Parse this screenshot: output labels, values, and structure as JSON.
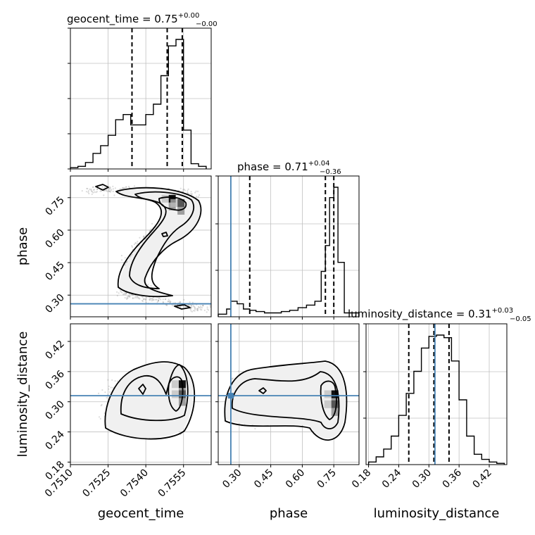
{
  "chart_data": {
    "type": "corner",
    "parameters": [
      "geocent_time",
      "phase",
      "luminosity_distance"
    ],
    "truths": {
      "phase": 0.26,
      "luminosity_distance": 0.312
    },
    "colors": {
      "truth": "#4682b4",
      "line": "#000000",
      "grid": "#c0c0c0",
      "samples": "#808080"
    },
    "grid": true,
    "marginals": [
      {
        "param": "geocent_time",
        "title": "geocent_time = 0.75",
        "title_plus": "+0.00",
        "title_minus": "−0.00",
        "xlim": [
          0.751,
          0.7566
        ],
        "quantiles": [
          0.75345,
          0.75485,
          0.75545
        ],
        "bin_edges": [
          0.751,
          0.7513,
          0.7516,
          0.7519,
          0.7522,
          0.7525,
          0.7528,
          0.7531,
          0.7534,
          0.7537,
          0.754,
          0.7543,
          0.7546,
          0.7549,
          0.7552,
          0.7555,
          0.7558,
          0.7561,
          0.7564
        ],
        "counts": [
          0.01,
          0.02,
          0.05,
          0.12,
          0.18,
          0.26,
          0.38,
          0.42,
          0.34,
          0.34,
          0.42,
          0.5,
          0.72,
          0.95,
          1.0,
          0.3,
          0.04,
          0.02
        ]
      },
      {
        "param": "phase",
        "title": "phase = 0.71",
        "title_plus": "+0.04",
        "title_minus": "−0.36",
        "xlim": [
          0.2,
          0.87
        ],
        "xticks": [
          "0.30",
          "0.45",
          "0.60",
          "0.75"
        ],
        "quantiles": [
          0.35,
          0.71,
          0.75
        ],
        "truth": 0.26,
        "bin_edges": [
          0.2,
          0.24,
          0.26,
          0.29,
          0.32,
          0.35,
          0.38,
          0.42,
          0.46,
          0.5,
          0.54,
          0.58,
          0.62,
          0.66,
          0.69,
          0.71,
          0.73,
          0.75,
          0.77,
          0.8,
          0.87
        ],
        "counts": [
          0.02,
          0.06,
          0.12,
          0.1,
          0.06,
          0.05,
          0.04,
          0.03,
          0.03,
          0.04,
          0.05,
          0.07,
          0.09,
          0.12,
          0.35,
          0.55,
          0.92,
          1.0,
          0.42,
          0.03
        ]
      },
      {
        "param": "luminosity_distance",
        "title": "luminosity_distance = 0.31",
        "title_plus": "+0.03",
        "title_minus": "−0.05",
        "xlim": [
          0.175,
          0.455
        ],
        "xticks": [
          "0.18",
          "0.24",
          "0.30",
          "0.36",
          "0.42"
        ],
        "quantiles": [
          0.26,
          0.31,
          0.34
        ],
        "truth": 0.312,
        "bin_edges": [
          0.18,
          0.195,
          0.21,
          0.225,
          0.24,
          0.255,
          0.27,
          0.285,
          0.3,
          0.315,
          0.33,
          0.345,
          0.36,
          0.375,
          0.39,
          0.405,
          0.42,
          0.435,
          0.45
        ],
        "counts": [
          0.02,
          0.06,
          0.12,
          0.22,
          0.38,
          0.55,
          0.72,
          0.9,
          0.99,
          1.0,
          0.98,
          0.8,
          0.5,
          0.22,
          0.08,
          0.04,
          0.02,
          0.01
        ]
      }
    ],
    "panels_2d": [
      {
        "x": "geocent_time",
        "y": "phase",
        "xlim": [
          0.751,
          0.7566
        ],
        "ylim": [
          0.2,
          0.85
        ],
        "yticks": [
          "0.30",
          "0.45",
          "0.60",
          "0.75"
        ],
        "dark_bins": [
          [
            0.75505,
            0.745
          ],
          [
            0.7554,
            0.725
          ]
        ],
        "features": [
          [
            0.75245,
            0.81
          ],
          [
            0.75535,
            0.225
          ]
        ]
      },
      {
        "x": "geocent_time",
        "y": "luminosity_distance",
        "xlim": [
          0.751,
          0.7566
        ],
        "ylim": [
          0.175,
          0.455
        ],
        "xticks": [
          "0.7510",
          "0.7525",
          "0.7540",
          "0.7555"
        ],
        "yticks": [
          "0.18",
          "0.24",
          "0.30",
          "0.36",
          "0.42"
        ],
        "dark_bins": [
          [
            0.75545,
            0.335
          ],
          [
            0.75545,
            0.315
          ]
        ]
      },
      {
        "x": "phase",
        "y": "luminosity_distance",
        "xlim": [
          0.2,
          0.87
        ],
        "ylim": [
          0.175,
          0.455
        ],
        "dark_bins": [
          [
            0.755,
            0.315
          ],
          [
            0.755,
            0.295
          ]
        ]
      }
    ],
    "xlabels": [
      "geocent_time",
      "phase",
      "luminosity_distance"
    ],
    "ylabels": [
      "phase",
      "luminosity_distance"
    ]
  }
}
